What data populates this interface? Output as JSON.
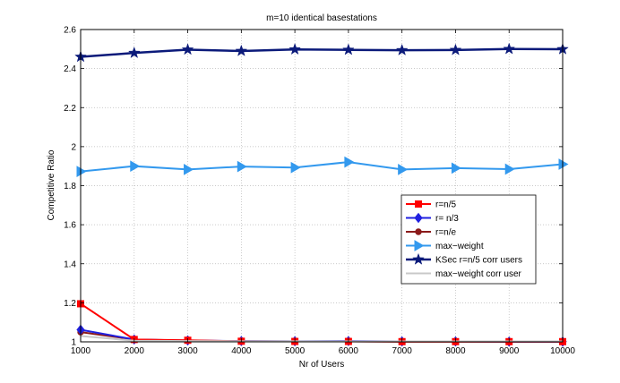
{
  "chart_data": {
    "type": "line",
    "title": "m=10 identical basestations",
    "xlabel": "Nr of Users",
    "ylabel": "Competitive Ratio",
    "xlim": [
      1000,
      10000
    ],
    "ylim": [
      1,
      2.6
    ],
    "x_ticks": [
      1000,
      2000,
      3000,
      4000,
      5000,
      6000,
      7000,
      8000,
      9000,
      10000
    ],
    "y_ticks": [
      1,
      1.2,
      1.4,
      1.6,
      1.8,
      2,
      2.2,
      2.4,
      2.6
    ],
    "x_tick_labels": [
      "1000",
      "2000",
      "3000",
      "4000",
      "5000",
      "6000",
      "7000",
      "8000",
      "9000",
      "10000"
    ],
    "y_tick_labels": [
      "1",
      "1.2",
      "1.4",
      "1.6",
      "1.8",
      "2",
      "2.2",
      "2.4",
      "2.6"
    ],
    "grid": true,
    "legend_position": "right",
    "x": [
      1000,
      2000,
      3000,
      4000,
      5000,
      6000,
      7000,
      8000,
      9000,
      10000
    ],
    "series": [
      {
        "name": "r=n/5",
        "color": "#ff0000",
        "marker": "square",
        "values": [
          1.195,
          1.012,
          1.008,
          1.003,
          1.002,
          1.002,
          1.001,
          1.001,
          1.001,
          1.001
        ]
      },
      {
        "name": "r= n/3",
        "color": "#2020e0",
        "marker": "diamond",
        "values": [
          1.062,
          1.012,
          1.007,
          1.004,
          1.003,
          1.004,
          1.002,
          1.002,
          1.001,
          1.001
        ]
      },
      {
        "name": "r=n/e",
        "color": "#8b1a1a",
        "marker": "circle",
        "values": [
          1.05,
          1.012,
          1.006,
          1.003,
          1.002,
          1.002,
          1.001,
          1.001,
          1.001,
          1.001
        ]
      },
      {
        "name": "max−weight",
        "color": "#3399ee",
        "marker": "triangle-right",
        "values": [
          1.873,
          1.9,
          1.883,
          1.898,
          1.893,
          1.921,
          1.883,
          1.89,
          1.885,
          1.91
        ]
      },
      {
        "name": "KSec r=n/5 corr users",
        "color": "#0b1a7a",
        "marker": "star",
        "values": [
          2.46,
          2.48,
          2.497,
          2.49,
          2.498,
          2.496,
          2.494,
          2.495,
          2.5,
          2.499
        ]
      },
      {
        "name": "max−weight corr user",
        "color": "#c8c8c8",
        "marker": "none",
        "values": [
          1.03,
          1.006,
          1.004,
          1.003,
          1.003,
          1.002,
          1.002,
          1.002,
          1.002,
          1.002
        ]
      }
    ]
  }
}
